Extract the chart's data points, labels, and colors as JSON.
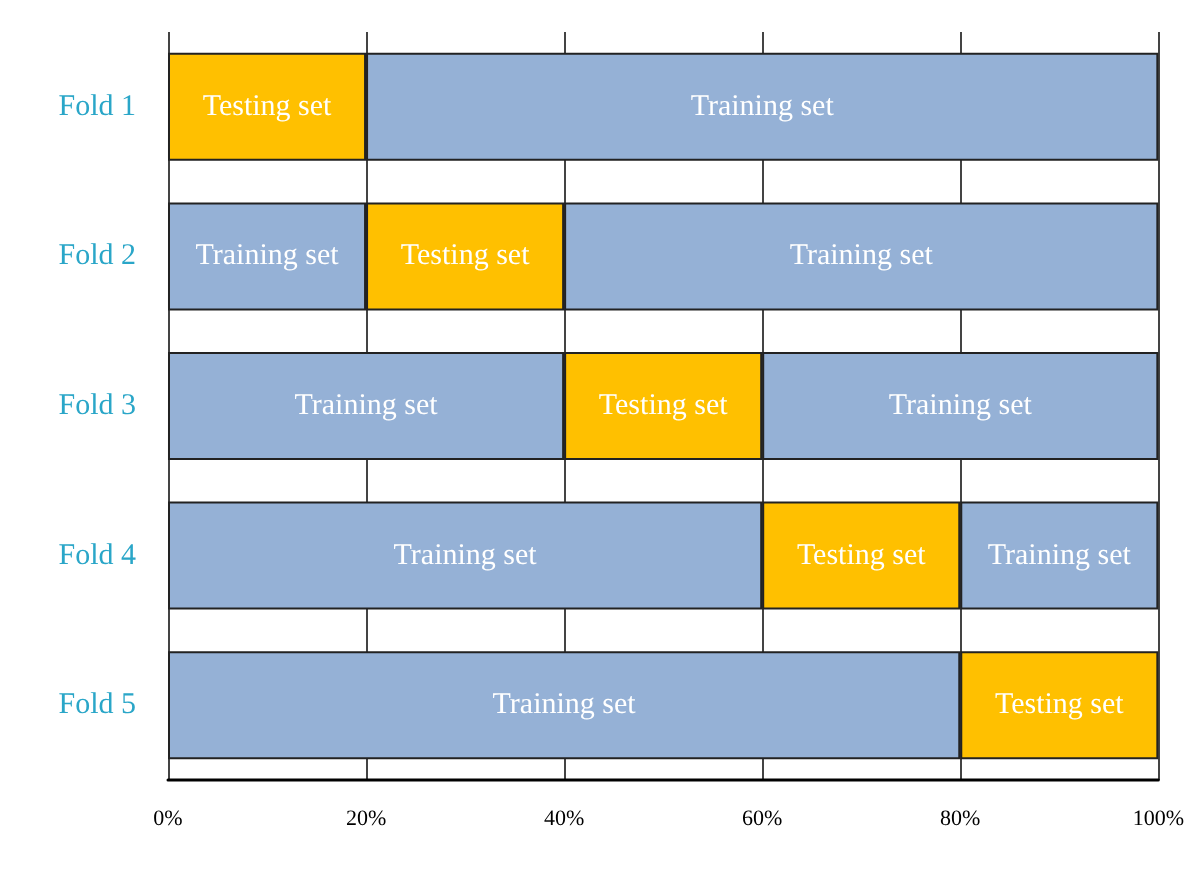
{
  "chart_data": {
    "type": "bar",
    "orientation": "horizontal",
    "stacked": true,
    "categories": [
      "Fold 1",
      "Fold 2",
      "Fold 3",
      "Fold 4",
      "Fold 5"
    ],
    "series": [
      {
        "name": "Training set",
        "color": "#95b1d6",
        "values": [
          null,
          20,
          40,
          60,
          80
        ]
      },
      {
        "name": "Testing set",
        "color": "#ffc000",
        "values": [
          20,
          20,
          20,
          20,
          20
        ]
      },
      {
        "name": "Training set",
        "color": "#95b1d6",
        "values": [
          80,
          60,
          40,
          20,
          null
        ]
      }
    ],
    "xlim": [
      0,
      100
    ],
    "xticks": [
      {
        "value": 0,
        "label": "0%"
      },
      {
        "value": 20,
        "label": "20%"
      },
      {
        "value": 40,
        "label": "40%"
      },
      {
        "value": 60,
        "label": "60%"
      },
      {
        "value": 80,
        "label": "80%"
      },
      {
        "value": 100,
        "label": "100%"
      }
    ],
    "grid": "x",
    "legend": false
  }
}
